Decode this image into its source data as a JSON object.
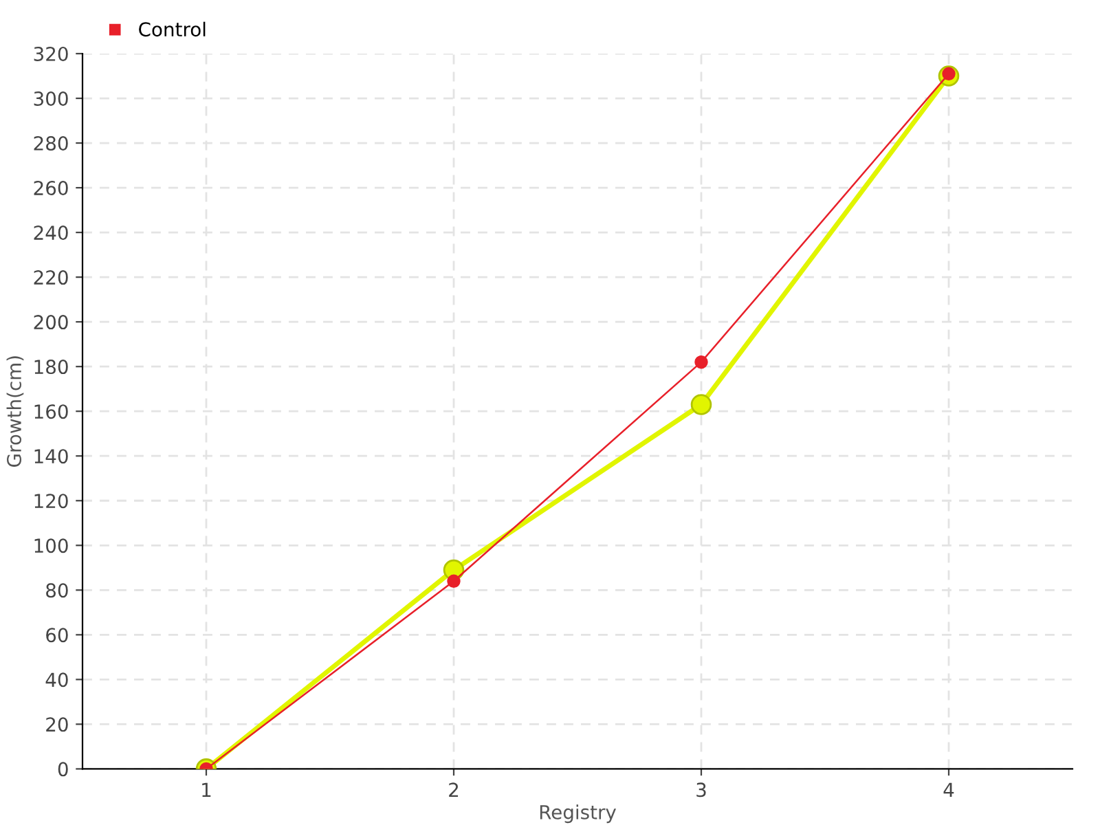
{
  "chart_data": {
    "type": "line",
    "xlabel": "Registry",
    "ylabel": "Growth(cm)",
    "categories": [
      "1",
      "2",
      "3",
      "4"
    ],
    "series": [
      {
        "color": "#e1f500",
        "values": [
          0,
          89,
          163,
          310
        ]
      },
      {
        "name": "Control",
        "color": "#e8202a",
        "values": [
          0,
          84,
          182,
          311
        ]
      }
    ],
    "ylim": [
      0,
      320
    ],
    "yticks": [
      0,
      20,
      40,
      60,
      80,
      100,
      120,
      140,
      160,
      180,
      200,
      220,
      240,
      260,
      280,
      300,
      320
    ],
    "grid": true,
    "legend": "top left",
    "marker": "circle",
    "line_style": "solid"
  }
}
